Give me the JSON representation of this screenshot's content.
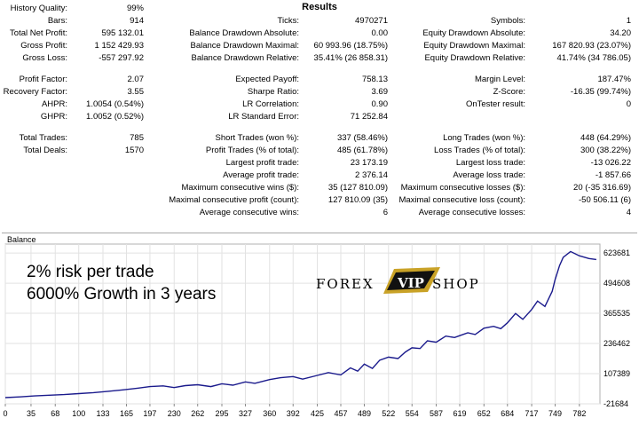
{
  "header": {
    "title": "Results"
  },
  "rows": [
    {
      "t": 4,
      "c1": [
        "History Quality:",
        "99%"
      ],
      "c2": null,
      "c3": null
    },
    {
      "t": 18,
      "c1": [
        "Bars:",
        "914"
      ],
      "c2": [
        "Ticks:",
        "4970271"
      ],
      "c3": [
        "Symbols:",
        "1"
      ]
    },
    {
      "t": 32,
      "c1": [
        "Total Net Profit:",
        "595 132.01"
      ],
      "c2": [
        "Balance Drawdown Absolute:",
        "0.00"
      ],
      "c3": [
        "Equity Drawdown Absolute:",
        "34.20"
      ]
    },
    {
      "t": 46,
      "c1": [
        "Gross Profit:",
        "1 152 429.93"
      ],
      "c2": [
        "Balance Drawdown Maximal:",
        "60 993.96 (18.75%)"
      ],
      "c3": [
        "Equity Drawdown Maximal:",
        "167 820.93 (23.07%)"
      ]
    },
    {
      "t": 60,
      "c1": [
        "Gross Loss:",
        "-557 297.92"
      ],
      "c2": [
        "Balance Drawdown Relative:",
        "35.41% (26 858.31)"
      ],
      "c3": [
        "Equity Drawdown Relative:",
        "41.74% (34 786.05)"
      ]
    },
    {
      "t": 84,
      "c1": [
        "Profit Factor:",
        "2.07"
      ],
      "c2": [
        "Expected Payoff:",
        "758.13"
      ],
      "c3": [
        "Margin Level:",
        "187.47%"
      ]
    },
    {
      "t": 98,
      "c1": [
        "Recovery Factor:",
        "3.55"
      ],
      "c2": [
        "Sharpe Ratio:",
        "3.69"
      ],
      "c3": [
        "Z-Score:",
        "-16.35 (99.74%)"
      ]
    },
    {
      "t": 112,
      "c1": [
        "AHPR:",
        "1.0054 (0.54%)"
      ],
      "c2": [
        "LR Correlation:",
        "0.90"
      ],
      "c3": [
        "OnTester result:",
        "0"
      ]
    },
    {
      "t": 126,
      "c1": [
        "GHPR:",
        "1.0052 (0.52%)"
      ],
      "c2": [
        "LR Standard Error:",
        "71 252.84"
      ],
      "c3": null
    },
    {
      "t": 150,
      "c1": [
        "Total Trades:",
        "785"
      ],
      "c2": [
        "Short Trades (won %):",
        "337 (58.46%)"
      ],
      "c3": [
        "Long Trades (won %):",
        "448 (64.29%)"
      ]
    },
    {
      "t": 164,
      "c1": [
        "Total Deals:",
        "1570"
      ],
      "c2": [
        "Profit Trades (% of total):",
        "485 (61.78%)"
      ],
      "c3": [
        "Loss Trades (% of total):",
        "300 (38.22%)"
      ]
    },
    {
      "t": 178,
      "c1": null,
      "c2": [
        "Largest profit trade:",
        "23 173.19"
      ],
      "c3": [
        "Largest loss trade:",
        "-13 026.22"
      ]
    },
    {
      "t": 192,
      "c1": null,
      "c2": [
        "Average profit trade:",
        "2 376.14"
      ],
      "c3": [
        "Average loss trade:",
        "-1 857.66"
      ]
    },
    {
      "t": 206,
      "c1": null,
      "c2": [
        "Maximum consecutive wins ($):",
        "35 (127 810.09)"
      ],
      "c3": [
        "Maximum consecutive losses ($):",
        "20 (-35 316.69)"
      ]
    },
    {
      "t": 220,
      "c1": null,
      "c2": [
        "Maximal consecutive profit (count):",
        "127 810.09 (35)"
      ],
      "c3": [
        "Maximal consecutive loss (count):",
        "-50 506.11 (6)"
      ]
    },
    {
      "t": 234,
      "c1": null,
      "c2": [
        "Average consecutive wins:",
        "6"
      ],
      "c3": [
        "Average consecutive losses:",
        "4"
      ]
    }
  ],
  "chart": {
    "label": "Balance",
    "overlay_line1": "2% risk per trade",
    "overlay_line2": "6000% Growth in 3 years",
    "logo_left": "FOREX",
    "logo_mid": "VIP",
    "logo_right": "SHOP",
    "line_color": "#1a1a8c",
    "logo_gold": "#c9a227"
  },
  "chart_data": {
    "type": "line",
    "title": "",
    "xlabel": "",
    "ylabel": "",
    "x_ticks": [
      0,
      35,
      68,
      100,
      133,
      165,
      197,
      230,
      262,
      295,
      327,
      360,
      392,
      425,
      457,
      489,
      522,
      554,
      587,
      619,
      652,
      684,
      717,
      749,
      782
    ],
    "y_ticks": [
      -21684,
      107389,
      236462,
      365535,
      494608,
      623681
    ],
    "xlim": [
      0,
      810
    ],
    "ylim": [
      -21684,
      662000
    ],
    "series": [
      {
        "x": [
          0,
          20,
          40,
          60,
          80,
          100,
          120,
          140,
          160,
          180,
          197,
          215,
          230,
          245,
          262,
          280,
          295,
          310,
          327,
          340,
          360,
          375,
          392,
          405,
          425,
          440,
          457,
          470,
          480,
          489,
          500,
          510,
          522,
          535,
          545,
          554,
          565,
          575,
          587,
          600,
          612,
          619,
          630,
          640,
          652,
          665,
          675,
          684,
          695,
          705,
          717,
          725,
          735,
          745,
          749,
          755,
          760,
          770,
          782,
          795,
          805
        ],
        "y": [
          5000,
          8000,
          12000,
          15000,
          18000,
          22000,
          26000,
          32000,
          38000,
          45000,
          52000,
          55000,
          48000,
          56000,
          60000,
          52000,
          64000,
          58000,
          72000,
          66000,
          82000,
          90000,
          95000,
          84000,
          100000,
          112000,
          102000,
          132000,
          118000,
          148000,
          130000,
          165000,
          178000,
          172000,
          200000,
          218000,
          215000,
          248000,
          242000,
          268000,
          262000,
          270000,
          282000,
          275000,
          302000,
          310000,
          300000,
          325000,
          365000,
          340000,
          382000,
          418000,
          395000,
          460000,
          510000,
          570000,
          605000,
          630000,
          612000,
          600000,
          596000
        ]
      }
    ]
  }
}
